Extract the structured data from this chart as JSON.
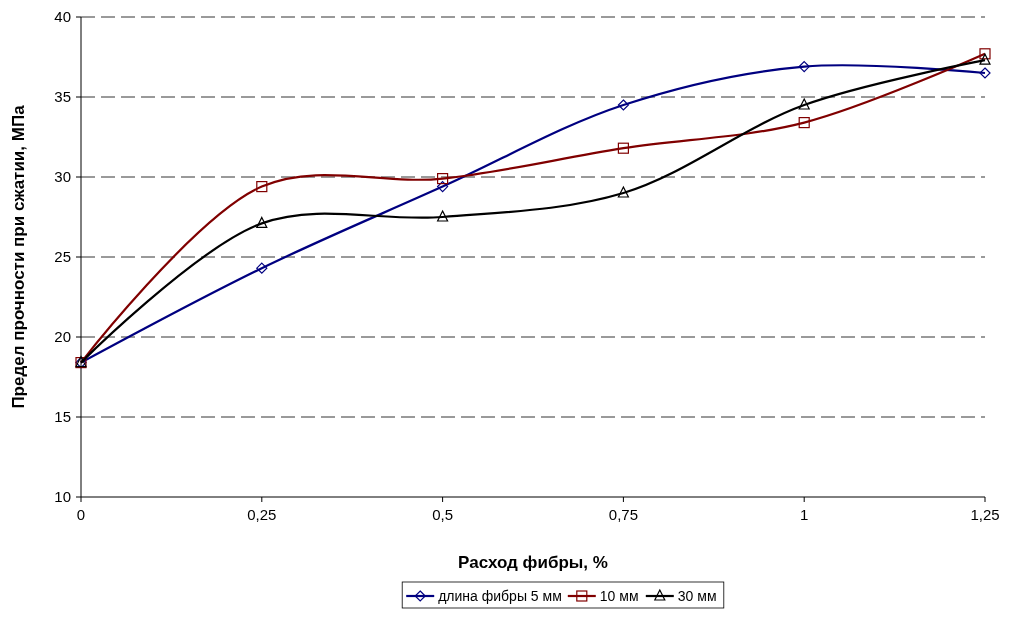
{
  "chart_data": {
    "type": "line",
    "xlabel": "Расход фибры, %",
    "ylabel": "Предел прочности при сжатии, МПа",
    "x": [
      0,
      0.25,
      0.5,
      0.75,
      1,
      1.25
    ],
    "xlim": [
      0,
      1.25
    ],
    "xticks": [
      0,
      {
        "value": 0.25,
        "label": "0,25"
      },
      {
        "value": 0.5,
        "label": "0,5"
      },
      {
        "value": 0.75,
        "label": "0,75"
      },
      1,
      {
        "value": 1.25,
        "label": "1,25"
      }
    ],
    "ylim": [
      10,
      40
    ],
    "yticks": [
      10,
      15,
      20,
      25,
      30,
      35,
      40
    ],
    "grid": "y",
    "legend": "bottom",
    "line_style": "solid",
    "series": [
      {
        "name": "длина фибры 5 мм",
        "color": "#000080",
        "marker": "diamond",
        "values": [
          18.4,
          24.3,
          29.4,
          34.5,
          36.9,
          36.5
        ]
      },
      {
        "name": "10 мм",
        "color": "#800000",
        "marker": "square",
        "values": [
          18.4,
          29.4,
          29.9,
          31.8,
          33.4,
          37.7
        ]
      },
      {
        "name": "30 мм",
        "color": "#000000",
        "marker": "triangle",
        "values": [
          18.4,
          27.1,
          27.5,
          29.0,
          34.5,
          37.3
        ]
      }
    ]
  }
}
